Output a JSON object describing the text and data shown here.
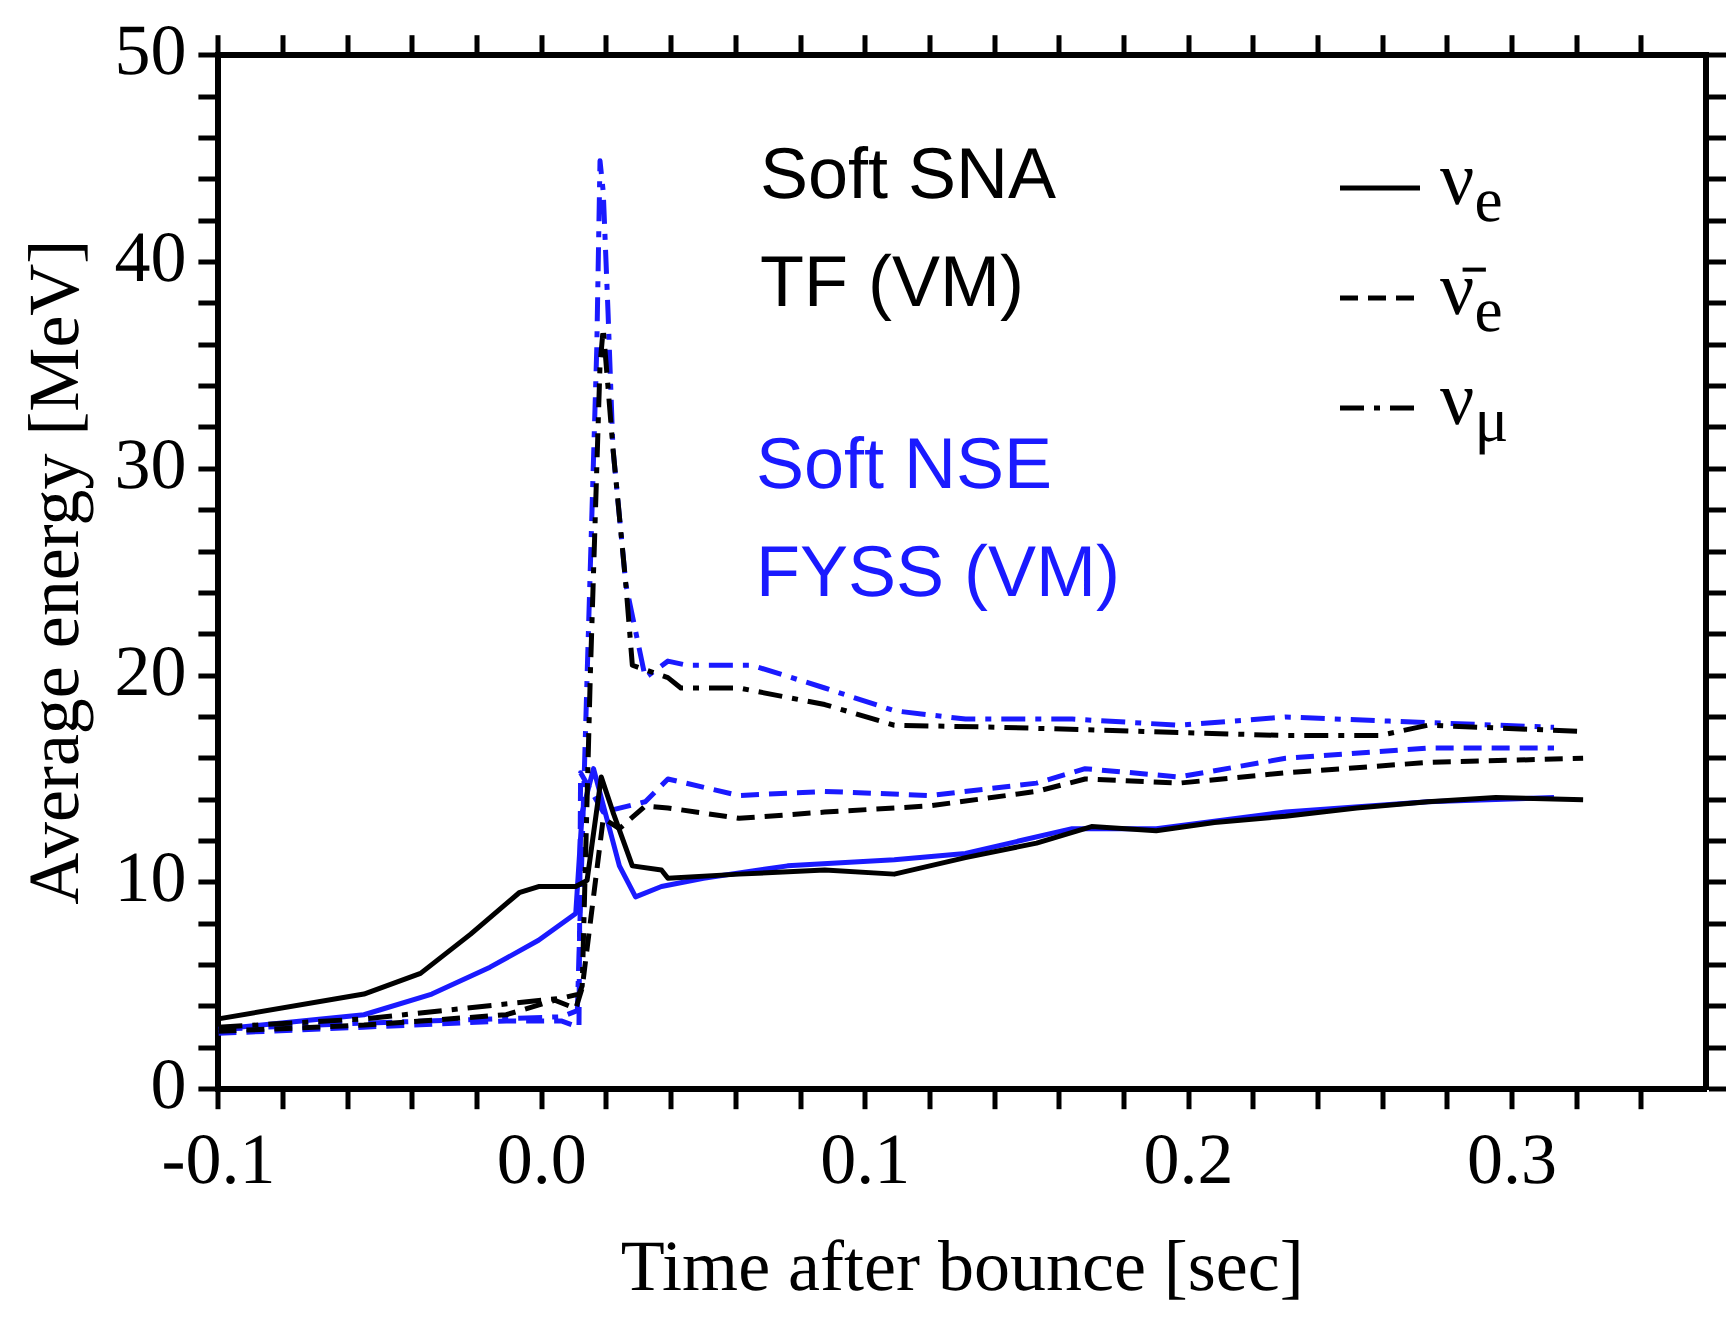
{
  "chart_data": {
    "type": "line",
    "xlabel": "Time after bounce [sec]",
    "ylabel": "Average energy [MeV]",
    "xlim": [
      -0.1,
      0.36
    ],
    "ylim": [
      0,
      50
    ],
    "xticks": [
      -0.1,
      {
        "value": -0.08,
        "label": null
      },
      {
        "value": -0.06,
        "label": null
      },
      {
        "value": -0.04,
        "label": null
      },
      {
        "value": -0.02,
        "label": null
      },
      {
        "value": 0,
        "label": "0.0"
      },
      {
        "value": 0.02,
        "label": null
      },
      {
        "value": 0.04,
        "label": null
      },
      {
        "value": 0.06,
        "label": null
      },
      {
        "value": 0.08,
        "label": null
      },
      0.1,
      {
        "value": 0.12,
        "label": null
      },
      {
        "value": 0.14,
        "label": null
      },
      {
        "value": 0.16,
        "label": null
      },
      {
        "value": 0.18,
        "label": null
      },
      0.2,
      {
        "value": 0.22,
        "label": null
      },
      {
        "value": 0.24,
        "label": null
      },
      {
        "value": 0.26,
        "label": null
      },
      {
        "value": 0.28,
        "label": null
      },
      0.3,
      {
        "value": 0.32,
        "label": null
      },
      {
        "value": 0.34,
        "label": null
      }
    ],
    "yticks": [
      0,
      {
        "value": 2,
        "label": null
      },
      {
        "value": 4,
        "label": null
      },
      {
        "value": 6,
        "label": null
      },
      {
        "value": 8,
        "label": null
      },
      10,
      {
        "value": 12,
        "label": null
      },
      {
        "value": 14,
        "label": null
      },
      {
        "value": 16,
        "label": null
      },
      {
        "value": 18,
        "label": null
      },
      20,
      {
        "value": 22,
        "label": null
      },
      {
        "value": 24,
        "label": null
      },
      {
        "value": 26,
        "label": null
      },
      {
        "value": 28,
        "label": null
      },
      30,
      {
        "value": 32,
        "label": null
      },
      {
        "value": 34,
        "label": null
      },
      {
        "value": 36,
        "label": null
      },
      {
        "value": 38,
        "label": null
      },
      40,
      {
        "value": 42,
        "label": null
      },
      {
        "value": 44,
        "label": null
      },
      {
        "value": 46,
        "label": null
      },
      {
        "value": 48,
        "label": null
      },
      50
    ],
    "grid": false,
    "legend": "top right",
    "marker": "none",
    "annotations": [
      "Soft SNA\nTF (VM)",
      "Soft NSE\nFYSS (VM)"
    ],
    "series": [
      {
        "name": "ν$_{e}$",
        "color": "#000000",
        "line_style": "solid",
        "x": [
          -0.1,
          -0.055,
          -0.0375,
          -0.022,
          -0.007,
          -0.001,
          0.0105,
          0.014,
          0.0184,
          0.022,
          0.028,
          0.037,
          0.039,
          0.061,
          0.0875,
          0.109,
          0.131,
          0.153,
          0.17,
          0.19,
          0.208,
          0.23,
          0.252,
          0.274,
          0.295,
          0.322
        ],
        "values": [
          3.4,
          4.6,
          5.6,
          7.5,
          9.5,
          9.8,
          9.8,
          10.1,
          15.1,
          13.4,
          10.8,
          10.6,
          10.2,
          10.4,
          10.6,
          10.4,
          11.2,
          11.9,
          12.7,
          12.5,
          12.9,
          13.2,
          13.6,
          13.9,
          14.1,
          14.0
        ]
      },
      {
        "name": "ν̄$_{e}$",
        "color": "#000000",
        "line_style": "dashed",
        "x": [
          -0.1,
          -0.055,
          -0.011,
          0.004,
          0.0105,
          0.0125,
          0.019,
          0.024,
          0.032,
          0.039,
          0.061,
          0.0875,
          0.12,
          0.153,
          0.168,
          0.197,
          0.23,
          0.274,
          0.322
        ],
        "values": [
          2.8,
          3.1,
          3.6,
          4.3,
          3.9,
          4.9,
          13.1,
          12.6,
          13.7,
          13.6,
          13.1,
          13.4,
          13.7,
          14.4,
          15.0,
          14.8,
          15.3,
          15.8,
          16.0
        ]
      },
      {
        "name": "ν$_{μ}$",
        "color": "#000000",
        "line_style": "dashdot",
        "x": [
          -0.1,
          -0.055,
          0.006,
          0.0115,
          0.0125,
          0.015,
          0.018,
          0.019,
          0.022,
          0.026,
          0.028,
          0.039,
          0.043,
          0.061,
          0.0875,
          0.109,
          0.142,
          0.186,
          0.23,
          0.259,
          0.274,
          0.322
        ],
        "values": [
          3.0,
          3.4,
          4.4,
          4.6,
          5.0,
          20.0,
          35.0,
          36.8,
          31.0,
          24.4,
          20.5,
          19.9,
          19.4,
          19.4,
          18.6,
          17.6,
          17.5,
          17.3,
          17.1,
          17.1,
          17.6,
          17.3
        ]
      },
      {
        "color": "#1a1aff",
        "line_style": "solid",
        "x": [
          -0.1,
          -0.055,
          -0.034,
          -0.016,
          -0.001,
          0.0105,
          0.0125,
          0.016,
          0.024,
          0.029,
          0.037,
          0.05,
          0.076,
          0.109,
          0.131,
          0.164,
          0.19,
          0.23,
          0.274,
          0.313
        ],
        "values": [
          2.9,
          3.6,
          4.6,
          5.9,
          7.2,
          8.5,
          13.4,
          15.5,
          10.8,
          9.3,
          9.8,
          10.2,
          10.8,
          11.1,
          11.4,
          12.6,
          12.6,
          13.4,
          13.9,
          14.1
        ]
      },
      {
        "color": "#1a1aff",
        "line_style": "dashed",
        "x": [
          -0.1,
          -0.055,
          -0.011,
          0.006,
          0.0115,
          0.012,
          0.019,
          0.032,
          0.039,
          0.061,
          0.0875,
          0.12,
          0.153,
          0.168,
          0.197,
          0.23,
          0.274,
          0.313
        ],
        "values": [
          2.7,
          3.0,
          3.3,
          3.3,
          3.0,
          15.3,
          13.4,
          13.9,
          15.0,
          14.2,
          14.4,
          14.2,
          14.8,
          15.5,
          15.1,
          16.0,
          16.5,
          16.5
        ]
      },
      {
        "color": "#1a1aff",
        "line_style": "dashdot",
        "x": [
          -0.1,
          -0.055,
          0.006,
          0.011,
          0.014,
          0.017,
          0.018,
          0.019,
          0.0205,
          0.022,
          0.026,
          0.032,
          0.039,
          0.045,
          0.065,
          0.0875,
          0.109,
          0.131,
          0.164,
          0.197,
          0.23,
          0.262,
          0.313
        ],
        "values": [
          2.9,
          3.2,
          3.5,
          3.8,
          19.9,
          35.8,
          44.9,
          43.4,
          37.5,
          31.0,
          24.4,
          19.9,
          20.7,
          20.5,
          20.5,
          19.4,
          18.3,
          17.9,
          17.9,
          17.6,
          18.0,
          17.8,
          17.5
        ]
      }
    ]
  }
}
